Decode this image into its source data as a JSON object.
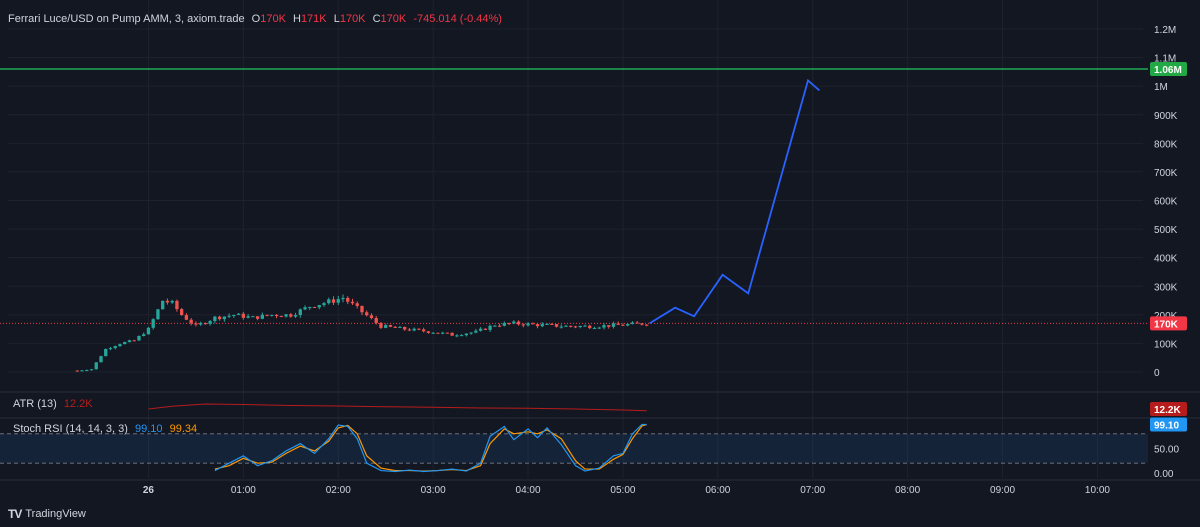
{
  "header": {
    "symbol": "Ferrari Luce/USD on Pump AMM, 3, axiom.trade",
    "o_label": "O",
    "o_value": "170K",
    "h_label": "H",
    "h_value": "171K",
    "l_label": "L",
    "l_value": "170K",
    "c_label": "C",
    "c_value": "170K",
    "change": "-745.014 (-0.44%)"
  },
  "indicators": {
    "atr_label": "ATR (13)",
    "atr_value": "12.2K",
    "stoch_label": "Stoch RSI (14, 14, 3, 3)",
    "stoch_k": "99.10",
    "stoch_d": "99.34"
  },
  "footer": {
    "brand": "TradingView",
    "brand_icon": "tradingview-logo-icon"
  },
  "colors": {
    "background": "#131722",
    "up": "#26a69a",
    "down": "#ef5350",
    "projection": "#2962ff",
    "target_line": "#22c55e",
    "current_price_line": "#f23645",
    "atr_line": "#b71c1c",
    "stoch_k": "#2196f3",
    "stoch_d": "#ff9800"
  },
  "chart_data": {
    "type": "candlestick",
    "y_axis": {
      "ticks": [
        "1.2M",
        "1.1M",
        "1M",
        "900K",
        "800K",
        "700K",
        "600K",
        "500K",
        "400K",
        "300K",
        "200K",
        "100K",
        "0"
      ],
      "range": [
        0,
        1250000
      ]
    },
    "x_axis": {
      "ticks": [
        "26",
        "01:00",
        "02:00",
        "03:00",
        "04:00",
        "05:00",
        "06:00",
        "07:00",
        "08:00",
        "09:00",
        "10:00"
      ],
      "tick_hours": [
        0,
        1,
        2,
        3,
        4,
        5,
        6,
        7,
        8,
        9,
        10
      ],
      "start_hour": -0.75,
      "range_hours": [
        -1.48,
        10.48
      ]
    },
    "target_line": {
      "value": 1060000,
      "label": "1.06M"
    },
    "current_price": {
      "value": 170000,
      "label": "170K"
    },
    "candles_summary": {
      "start_hour": -0.75,
      "interval_minutes": 3,
      "waypoints": [
        [
          -0.75,
          5000
        ],
        [
          -0.6,
          10000
        ],
        [
          -0.45,
          80000
        ],
        [
          -0.3,
          100000
        ],
        [
          -0.15,
          110000
        ],
        [
          0.0,
          150000
        ],
        [
          0.15,
          250000
        ],
        [
          0.25,
          240000
        ],
        [
          0.35,
          200000
        ],
        [
          0.5,
          160000
        ],
        [
          0.7,
          190000
        ],
        [
          0.9,
          200000
        ],
        [
          1.1,
          190000
        ],
        [
          1.3,
          200000
        ],
        [
          1.5,
          200000
        ],
        [
          1.7,
          230000
        ],
        [
          1.95,
          250000
        ],
        [
          2.05,
          260000
        ],
        [
          2.25,
          210000
        ],
        [
          2.45,
          160000
        ],
        [
          2.7,
          150000
        ],
        [
          3.0,
          140000
        ],
        [
          3.2,
          130000
        ],
        [
          3.45,
          140000
        ],
        [
          3.65,
          165000
        ],
        [
          3.85,
          170000
        ],
        [
          4.1,
          165000
        ],
        [
          4.4,
          160000
        ],
        [
          4.7,
          160000
        ],
        [
          5.0,
          165000
        ],
        [
          5.25,
          170000
        ]
      ]
    },
    "projection": {
      "x_hours": [
        5.28,
        5.55,
        5.75,
        6.05,
        6.32,
        6.95,
        7.07
      ],
      "y_values": [
        170000,
        225000,
        195000,
        340000,
        275000,
        1020000,
        985000
      ]
    },
    "atr": {
      "label": "ATR (13)",
      "value": 12200,
      "value_label": "12.2K",
      "points": [
        [
          0.0,
          0.36
        ],
        [
          0.25,
          0.47
        ],
        [
          0.6,
          0.56
        ],
        [
          1.0,
          0.54
        ],
        [
          1.5,
          0.5
        ],
        [
          2.0,
          0.48
        ],
        [
          2.5,
          0.45
        ],
        [
          3.0,
          0.43
        ],
        [
          3.5,
          0.4
        ],
        [
          4.0,
          0.39
        ],
        [
          4.5,
          0.36
        ],
        [
          5.0,
          0.32
        ],
        [
          5.25,
          0.29
        ]
      ]
    },
    "stoch_rsi": {
      "label": "Stoch RSI (14, 14, 3, 3)",
      "y_ticks": [
        "50.00",
        "0.00"
      ],
      "bands": [
        80,
        20
      ],
      "k_value": 99.1,
      "d_value": 99.34,
      "k": [
        [
          0.7,
          5
        ],
        [
          0.85,
          20
        ],
        [
          1.0,
          35
        ],
        [
          1.15,
          15
        ],
        [
          1.3,
          25
        ],
        [
          1.45,
          45
        ],
        [
          1.6,
          60
        ],
        [
          1.75,
          40
        ],
        [
          1.9,
          70
        ],
        [
          2.0,
          98
        ],
        [
          2.1,
          95
        ],
        [
          2.2,
          70
        ],
        [
          2.3,
          20
        ],
        [
          2.45,
          5
        ],
        [
          2.6,
          3
        ],
        [
          2.75,
          6
        ],
        [
          2.9,
          3
        ],
        [
          3.05,
          5
        ],
        [
          3.2,
          8
        ],
        [
          3.35,
          4
        ],
        [
          3.5,
          20
        ],
        [
          3.6,
          75
        ],
        [
          3.75,
          95
        ],
        [
          3.85,
          68
        ],
        [
          4.0,
          90
        ],
        [
          4.1,
          72
        ],
        [
          4.2,
          92
        ],
        [
          4.35,
          58
        ],
        [
          4.5,
          15
        ],
        [
          4.6,
          4
        ],
        [
          4.75,
          10
        ],
        [
          4.9,
          35
        ],
        [
          5.0,
          40
        ],
        [
          5.1,
          80
        ],
        [
          5.2,
          99
        ],
        [
          5.25,
          99
        ]
      ],
      "d": [
        [
          0.7,
          8
        ],
        [
          0.85,
          15
        ],
        [
          1.0,
          30
        ],
        [
          1.15,
          20
        ],
        [
          1.3,
          22
        ],
        [
          1.45,
          40
        ],
        [
          1.6,
          55
        ],
        [
          1.75,
          45
        ],
        [
          1.9,
          65
        ],
        [
          2.0,
          92
        ],
        [
          2.1,
          97
        ],
        [
          2.2,
          80
        ],
        [
          2.3,
          35
        ],
        [
          2.45,
          10
        ],
        [
          2.6,
          5
        ],
        [
          2.75,
          5
        ],
        [
          2.9,
          4
        ],
        [
          3.05,
          5
        ],
        [
          3.2,
          7
        ],
        [
          3.35,
          5
        ],
        [
          3.5,
          15
        ],
        [
          3.6,
          60
        ],
        [
          3.75,
          90
        ],
        [
          3.85,
          80
        ],
        [
          4.0,
          84
        ],
        [
          4.1,
          80
        ],
        [
          4.2,
          88
        ],
        [
          4.35,
          70
        ],
        [
          4.5,
          25
        ],
        [
          4.6,
          8
        ],
        [
          4.75,
          8
        ],
        [
          4.9,
          28
        ],
        [
          5.0,
          38
        ],
        [
          5.1,
          70
        ],
        [
          5.2,
          96
        ],
        [
          5.25,
          99
        ]
      ]
    }
  }
}
